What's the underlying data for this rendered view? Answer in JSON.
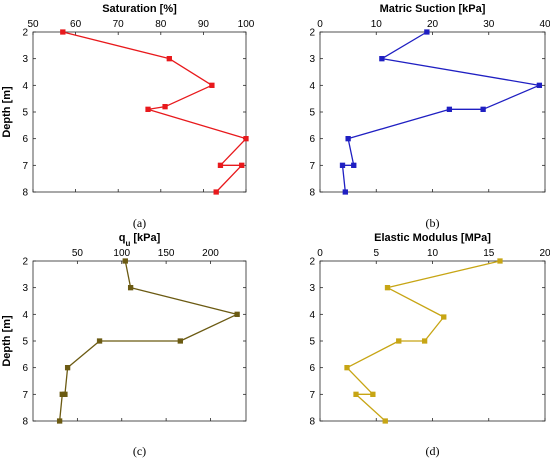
{
  "chart_data": [
    {
      "type": "line",
      "title": "Saturation [%]",
      "ylabel": "Depth [m]",
      "caption": "(a)",
      "xlim": [
        50,
        100
      ],
      "xticks": [
        "50",
        "60",
        "70",
        "80",
        "90",
        "100"
      ],
      "xtick_values": [
        50,
        60,
        70,
        80,
        90,
        100
      ],
      "ylim": [
        2,
        8
      ],
      "yticks": [
        "2",
        "3",
        "4",
        "5",
        "6",
        "7",
        "8"
      ],
      "ytick_values": [
        2,
        3,
        4,
        5,
        6,
        7,
        8
      ],
      "y_axis_inverted": true,
      "x_axis_position": "top",
      "color": "#e8191c",
      "points": [
        {
          "x": 57,
          "y": 2
        },
        {
          "x": 82,
          "y": 3
        },
        {
          "x": 92,
          "y": 4
        },
        {
          "x": 81,
          "y": 4.8
        },
        {
          "x": 77,
          "y": 4.9
        },
        {
          "x": 100,
          "y": 6
        },
        {
          "x": 94,
          "y": 7
        },
        {
          "x": 99,
          "y": 7
        },
        {
          "x": 93,
          "y": 8
        }
      ]
    },
    {
      "type": "line",
      "title": "Matric Suction [kPa]",
      "ylabel": "",
      "caption": "(b)",
      "xlim": [
        0,
        40
      ],
      "xticks": [
        "0",
        "10",
        "20",
        "30",
        "40"
      ],
      "xtick_values": [
        0,
        10,
        20,
        30,
        40
      ],
      "ylim": [
        2,
        8
      ],
      "yticks": [
        "2",
        "3",
        "4",
        "5",
        "6",
        "7",
        "8"
      ],
      "ytick_values": [
        2,
        3,
        4,
        5,
        6,
        7,
        8
      ],
      "y_axis_inverted": true,
      "x_axis_position": "top",
      "color": "#1f1fc2",
      "points": [
        {
          "x": 19,
          "y": 2
        },
        {
          "x": 11,
          "y": 3
        },
        {
          "x": 39,
          "y": 4
        },
        {
          "x": 29,
          "y": 4.9
        },
        {
          "x": 23,
          "y": 4.9
        },
        {
          "x": 5,
          "y": 6
        },
        {
          "x": 6,
          "y": 7
        },
        {
          "x": 4,
          "y": 7
        },
        {
          "x": 4.5,
          "y": 8
        }
      ]
    },
    {
      "type": "line",
      "title": "q",
      "title_subscript": "u",
      "title_suffix": " [kPa]",
      "ylabel": "Depth [m]",
      "caption": "(c)",
      "xlim": [
        0,
        240
      ],
      "xticks": [
        "50",
        "100",
        "150",
        "200"
      ],
      "xtick_values": [
        50,
        100,
        150,
        200
      ],
      "ylim": [
        2,
        8
      ],
      "yticks": [
        "2",
        "3",
        "4",
        "5",
        "6",
        "7",
        "8"
      ],
      "ytick_values": [
        2,
        3,
        4,
        5,
        6,
        7,
        8
      ],
      "y_axis_inverted": true,
      "x_axis_position": "top",
      "color": "#6b5a12",
      "points": [
        {
          "x": 104,
          "y": 2
        },
        {
          "x": 110,
          "y": 3
        },
        {
          "x": 230,
          "y": 4
        },
        {
          "x": 166,
          "y": 5
        },
        {
          "x": 75,
          "y": 5
        },
        {
          "x": 39,
          "y": 6
        },
        {
          "x": 36,
          "y": 7
        },
        {
          "x": 33,
          "y": 7
        },
        {
          "x": 30,
          "y": 8
        }
      ]
    },
    {
      "type": "line",
      "title": "Elastic Modulus [MPa]",
      "ylabel": "",
      "caption": "(d)",
      "xlim": [
        0,
        20
      ],
      "xticks": [
        "0",
        "5",
        "10",
        "15",
        "20"
      ],
      "xtick_values": [
        0,
        5,
        10,
        15,
        20
      ],
      "ylim": [
        2,
        8
      ],
      "yticks": [
        "2",
        "3",
        "4",
        "5",
        "6",
        "7",
        "8"
      ],
      "ytick_values": [
        2,
        3,
        4,
        5,
        6,
        7,
        8
      ],
      "y_axis_inverted": true,
      "x_axis_position": "top",
      "color": "#c7a514",
      "points": [
        {
          "x": 16,
          "y": 2
        },
        {
          "x": 6,
          "y": 3
        },
        {
          "x": 11,
          "y": 4.1
        },
        {
          "x": 9.3,
          "y": 5
        },
        {
          "x": 7,
          "y": 5
        },
        {
          "x": 2.4,
          "y": 6
        },
        {
          "x": 4.7,
          "y": 7
        },
        {
          "x": 3.2,
          "y": 7
        },
        {
          "x": 5.8,
          "y": 8
        }
      ]
    }
  ]
}
